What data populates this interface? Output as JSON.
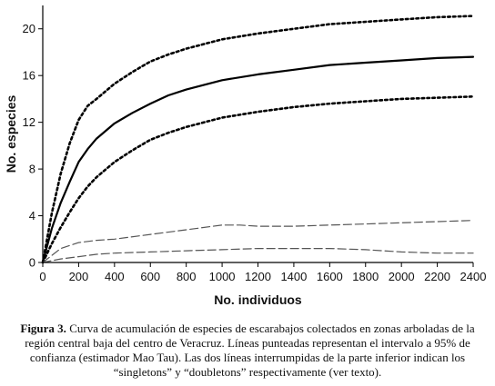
{
  "chart_data": {
    "type": "line",
    "xlabel": "No. individuos",
    "ylabel": "No. especies",
    "xlim": [
      0,
      2400
    ],
    "ylim": [
      0,
      22
    ],
    "xticks": [
      0,
      200,
      400,
      600,
      800,
      1000,
      1200,
      1400,
      1600,
      1800,
      2000,
      2200,
      2400
    ],
    "yticks": [
      0,
      4,
      8,
      12,
      16,
      20
    ],
    "series": [
      {
        "style": "solid",
        "color": "#000000",
        "x": [
          0,
          50,
          100,
          150,
          200,
          250,
          300,
          400,
          500,
          600,
          700,
          800,
          1000,
          1200,
          1400,
          1600,
          1800,
          2000,
          2200,
          2400
        ],
        "y": [
          0,
          2.9,
          5.1,
          6.9,
          8.6,
          9.7,
          10.6,
          11.9,
          12.8,
          13.6,
          14.3,
          14.8,
          15.6,
          16.1,
          16.5,
          16.9,
          17.1,
          17.3,
          17.5,
          17.6
        ]
      },
      {
        "style": "dotted",
        "color": "#000000",
        "x": [
          0,
          50,
          100,
          150,
          200,
          250,
          300,
          400,
          500,
          600,
          700,
          800,
          1000,
          1200,
          1400,
          1600,
          1800,
          2000,
          2200,
          2400
        ],
        "y": [
          0,
          4.2,
          7.6,
          10.2,
          12.2,
          13.4,
          14.0,
          15.3,
          16.3,
          17.2,
          17.8,
          18.3,
          19.1,
          19.6,
          20.0,
          20.4,
          20.6,
          20.8,
          21.0,
          21.1
        ]
      },
      {
        "style": "dotted",
        "color": "#000000",
        "x": [
          0,
          50,
          100,
          150,
          200,
          250,
          300,
          400,
          500,
          600,
          700,
          800,
          1000,
          1200,
          1400,
          1600,
          1800,
          2000,
          2200,
          2400
        ],
        "y": [
          0,
          1.6,
          3.0,
          4.3,
          5.5,
          6.5,
          7.3,
          8.6,
          9.6,
          10.5,
          11.1,
          11.6,
          12.4,
          12.9,
          13.3,
          13.6,
          13.8,
          14.0,
          14.1,
          14.2
        ]
      },
      {
        "style": "dashed",
        "color": "#555555",
        "x": [
          0,
          100,
          200,
          300,
          400,
          600,
          800,
          1000,
          1100,
          1200,
          1400,
          1600,
          1800,
          2000,
          2200,
          2400
        ],
        "y": [
          0,
          1.2,
          1.7,
          1.9,
          2.0,
          2.4,
          2.8,
          3.2,
          3.2,
          3.1,
          3.1,
          3.2,
          3.3,
          3.4,
          3.5,
          3.6
        ]
      },
      {
        "style": "dashed",
        "color": "#555555",
        "x": [
          0,
          100,
          200,
          300,
          400,
          600,
          800,
          1000,
          1200,
          1400,
          1600,
          1800,
          2000,
          2200,
          2400
        ],
        "y": [
          0,
          0.3,
          0.5,
          0.7,
          0.8,
          0.9,
          1.0,
          1.1,
          1.2,
          1.2,
          1.2,
          1.1,
          0.9,
          0.8,
          0.8
        ]
      }
    ]
  },
  "caption": {
    "label": "Figura 3.",
    "text": " Curva de acumulación de especies de escarabajos colectados en zonas arboladas de la región central baja del centro de Veracruz. Líneas punteadas representan el intervalo a 95% de confianza (estimador Mao Tau). Las dos líneas interrumpidas de la parte inferior indican los “singletons” y “doubletons” respectivamente (ver texto)."
  }
}
